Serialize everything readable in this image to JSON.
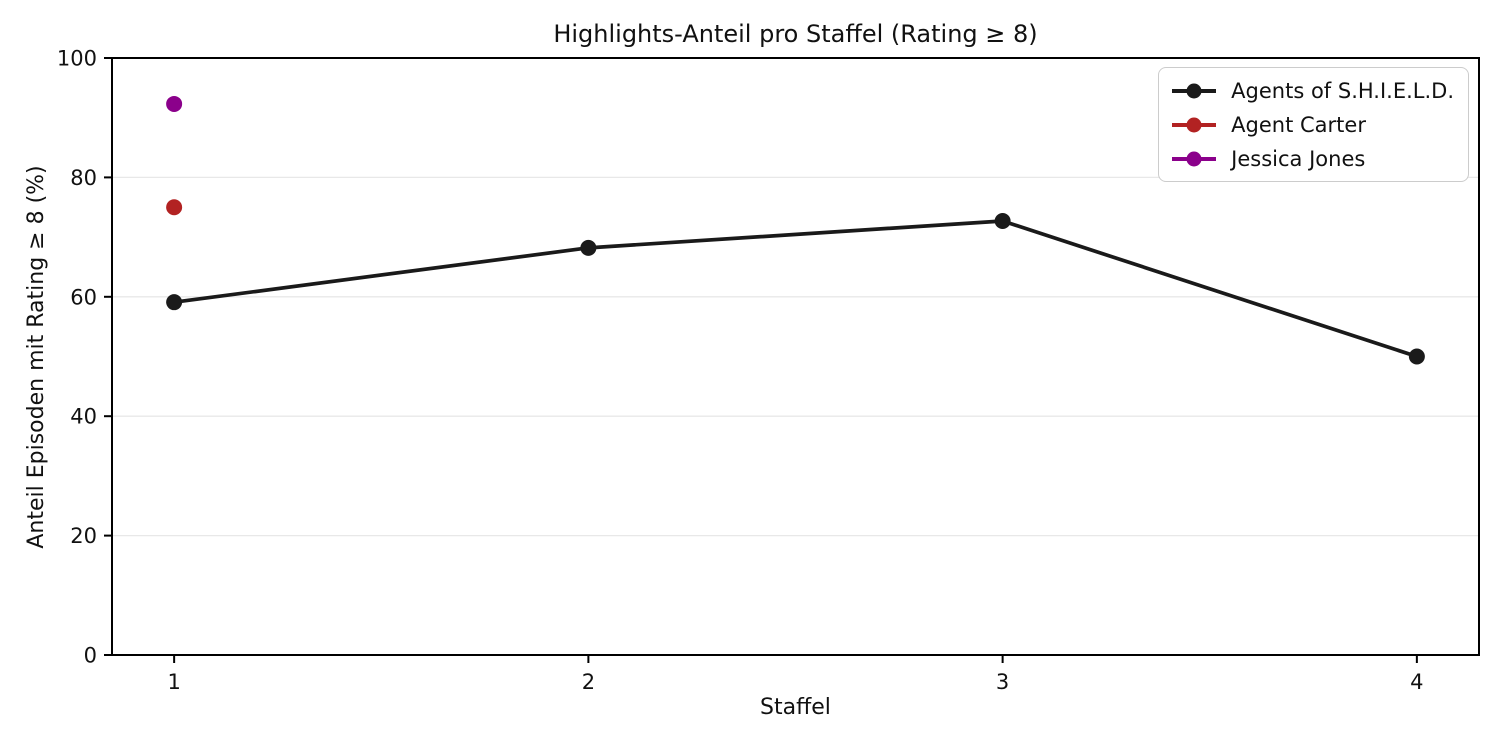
{
  "chart_data": {
    "type": "line",
    "title": "Highlights-Anteil pro Staffel (Rating ≥ 8)",
    "xlabel": "Staffel",
    "ylabel": "Anteil Episoden mit Rating ≥ 8 (%)",
    "xlim": [
      0.85,
      4.15
    ],
    "ylim": [
      0,
      100
    ],
    "xticks": [
      1,
      2,
      3,
      4
    ],
    "yticks": [
      0,
      20,
      40,
      60,
      80,
      100
    ],
    "grid": "horizontal",
    "legend_position": "top-right",
    "series": [
      {
        "name": "Agents of S.H.I.E.L.D.",
        "color": "#1a1a1a",
        "marker": "circle",
        "x": [
          1,
          2,
          3,
          4
        ],
        "y": [
          59.1,
          68.2,
          72.7,
          50.0
        ]
      },
      {
        "name": "Agent Carter",
        "color": "#b22222",
        "marker": "circle",
        "x": [
          1
        ],
        "y": [
          75.0
        ]
      },
      {
        "name": "Jessica Jones",
        "color": "#8b008b",
        "marker": "circle",
        "x": [
          1
        ],
        "y": [
          92.3
        ]
      }
    ],
    "colors": {
      "background": "#ffffff",
      "grid": "#e8e8e8",
      "spine": "#000000",
      "text": "#111111",
      "legend_border": "#cccccc"
    }
  }
}
